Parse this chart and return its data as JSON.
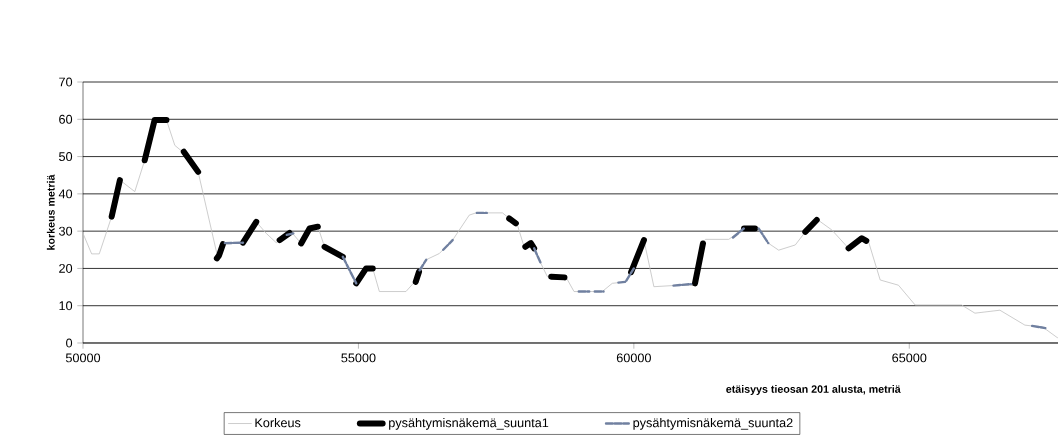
{
  "chart_data": {
    "type": "line",
    "xlabel": "etäisyys tieosan 201 alusta, metriä",
    "ylabel": "korkeus metriä",
    "xlim": [
      50000,
      67700
    ],
    "xticks": [
      50000,
      55000,
      60000,
      65000
    ],
    "ylim": [
      0,
      70
    ],
    "yticks": [
      0,
      10,
      20,
      30,
      40,
      50,
      60,
      70
    ],
    "grid": "y",
    "legend": "bottom",
    "series": [
      {
        "name": "Korkeus",
        "color": "#c0c0c0",
        "line_style": "solid",
        "x": [
          50000,
          50157,
          50295,
          50520,
          50670,
          50940,
          51120,
          51300,
          51515,
          51667,
          51880,
          52090,
          52360,
          52450,
          52575,
          52905,
          53145,
          53327,
          53508,
          53780,
          53960,
          54113,
          54263,
          54385,
          54717,
          54960,
          55140,
          55260,
          55380,
          55863,
          56075,
          56226,
          56468,
          56710,
          57012,
          57133,
          57616,
          57887,
          58008,
          58190,
          58310,
          58430,
          58763,
          58914,
          59427,
          59608,
          59850,
          60000,
          60183,
          60364,
          60817,
          61090,
          61240,
          61300,
          61723,
          61995,
          62267,
          62448,
          62629,
          62931,
          63112,
          63323,
          63595,
          63898,
          64139,
          64260,
          64472,
          64804,
          65106,
          65950,
          66192,
          66645,
          67098,
          67430,
          67700
        ],
        "values": [
          29.4,
          23.9,
          23.9,
          33.9,
          43.7,
          40.6,
          49,
          59.8,
          59.8,
          53,
          50.4,
          45.9,
          28.5,
          22.7,
          26.5,
          26.9,
          32.5,
          29.4,
          26.9,
          29.8,
          26.7,
          30.7,
          31.2,
          25.8,
          23.1,
          16,
          20,
          20,
          13.8,
          13.8,
          17.3,
          22.3,
          24,
          27.6,
          34.3,
          34.9,
          34.9,
          31.6,
          25.8,
          25.4,
          21.4,
          17.8,
          17.8,
          13.8,
          13.8,
          16,
          16.4,
          20,
          27.6,
          15.1,
          15.5,
          15.5,
          26.7,
          27.8,
          27.8,
          30.7,
          30.7,
          26.7,
          24.9,
          26.3,
          29.8,
          33.2,
          30.3,
          25.4,
          28.1,
          27.2,
          16.9,
          15.5,
          10.2,
          10.2,
          8,
          8.8,
          4.8,
          4.2,
          1.3
        ]
      },
      {
        "name": "pysähtymisnäkemä_suunta1",
        "color": "#000000",
        "line_style": "solid",
        "x": [
          50520,
          50670,
          50700,
          51120,
          51300,
          51515,
          51600,
          51830,
          52090,
          52200,
          52430,
          52470,
          52540,
          52700,
          52905,
          53145,
          53300,
          53570,
          53750,
          53850,
          53960,
          54113,
          54263,
          54300,
          54385,
          54717,
          54800,
          54960,
          55140,
          55260,
          55500,
          56040,
          56100,
          57000,
          57737,
          57858,
          57950,
          58030,
          58130,
          58190,
          58300,
          58500,
          58740,
          59000,
          59950,
          60183,
          60500,
          61110,
          61255,
          61500,
          62000,
          62200,
          62500,
          63112,
          63320,
          63500,
          63898,
          64139,
          64220
        ],
        "values": [
          33.9,
          43.7,
          null,
          49,
          59.8,
          59.8,
          null,
          51.3,
          45.9,
          null,
          22.7,
          23.5,
          26.5,
          null,
          26.9,
          32.5,
          null,
          27.6,
          29.5,
          null,
          26.7,
          30.7,
          31.2,
          null,
          25.8,
          23.1,
          null,
          16,
          20,
          20,
          null,
          16.4,
          19.1,
          null,
          33.4,
          32.1,
          null,
          25.8,
          26.8,
          25.4,
          null,
          17.8,
          17.6,
          null,
          19,
          27.6,
          null,
          16,
          26.7,
          null,
          30.7,
          30.7,
          null,
          29.8,
          33,
          null,
          25.4,
          28.1,
          27.4
        ]
      },
      {
        "name": "pysähtymisnäkemä_suunta2",
        "color": "#7080a0",
        "line_style": "dashed",
        "x": [
          52575,
          52905,
          53000,
          53700,
          53850,
          54000,
          54717,
          54960,
          55000,
          56110,
          56230,
          56400,
          56540,
          56710,
          56900,
          57150,
          57330,
          57500,
          58190,
          58310,
          58500,
          59000,
          59190,
          59240,
          59290,
          59450,
          59500,
          59720,
          59850,
          60000,
          60300,
          60720,
          61040,
          61400,
          61800,
          61995,
          62100,
          62267,
          62440,
          63000,
          67230,
          67470
        ],
        "values": [
          26.8,
          26.9,
          null,
          29,
          29.5,
          null,
          23.1,
          16,
          null,
          19.5,
          22.3,
          null,
          25,
          27.6,
          null,
          34.9,
          34.9,
          null,
          25.4,
          21.4,
          null,
          13.8,
          13.8,
          null,
          13.8,
          13.8,
          null,
          16.2,
          16.4,
          20,
          null,
          15.4,
          15.8,
          null,
          28.3,
          30.7,
          null,
          30.7,
          26.8,
          null,
          4.6,
          4.0
        ]
      }
    ]
  }
}
